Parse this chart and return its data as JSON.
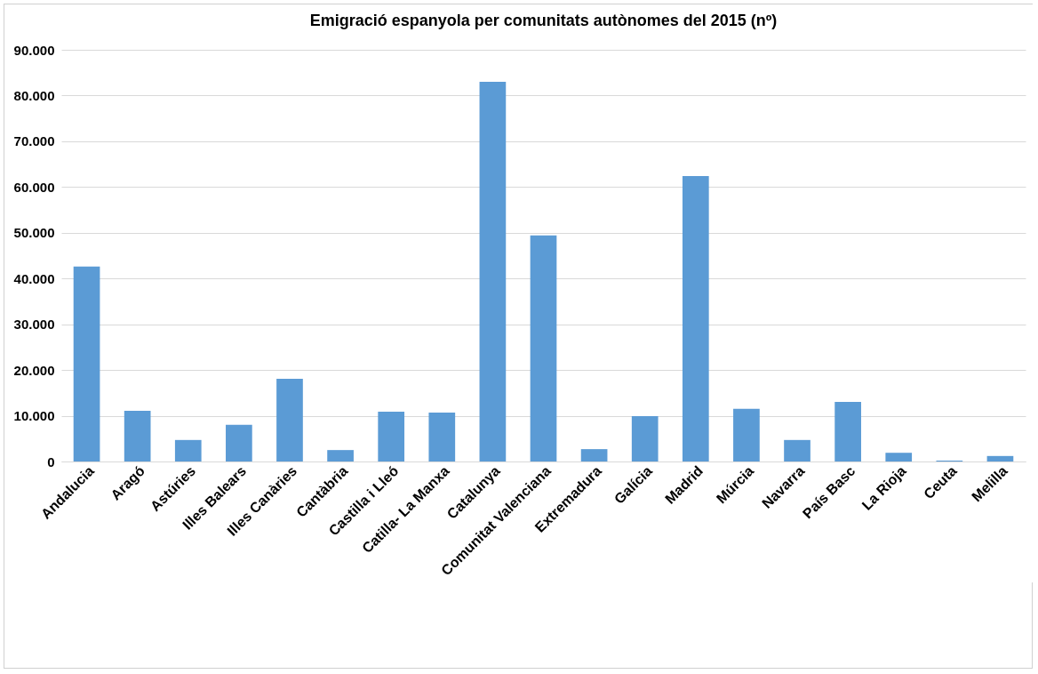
{
  "chart_data": {
    "type": "bar",
    "title": "Emigració espanyola per comunitats autònomes del 2015 (nº)",
    "categories": [
      "Andalucia",
      "Aragó",
      "Astúries",
      "Illes Balears",
      "Illes Canàries",
      "Cantàbria",
      "Castilla i Lleó",
      "Catilla- La Manxa",
      "Catalunya",
      "Comunitat Valenciana",
      "Extremadura",
      "Galícia",
      "Madrid",
      "Múrcia",
      "Navarra",
      "País Basc",
      "La Rioja",
      "Ceuta",
      "Melilla"
    ],
    "values": [
      42600,
      11100,
      4700,
      8000,
      18100,
      2500,
      10900,
      10700,
      83000,
      49400,
      2700,
      9900,
      62400,
      11500,
      4700,
      13000,
      1900,
      200,
      1200
    ],
    "color": "#5b9bd5",
    "ylim": [
      0,
      90000
    ],
    "yticks": [
      {
        "value": 0,
        "label": "0"
      },
      {
        "value": 10000,
        "label": "10.000"
      },
      {
        "value": 20000,
        "label": "20.000"
      },
      {
        "value": 30000,
        "label": "30.000"
      },
      {
        "value": 40000,
        "label": "40.000"
      },
      {
        "value": 50000,
        "label": "50.000"
      },
      {
        "value": 60000,
        "label": "60.000"
      },
      {
        "value": 70000,
        "label": "70.000"
      },
      {
        "value": 80000,
        "label": "80.000"
      },
      {
        "value": 90000,
        "label": "90.000"
      }
    ],
    "grid": "y"
  }
}
